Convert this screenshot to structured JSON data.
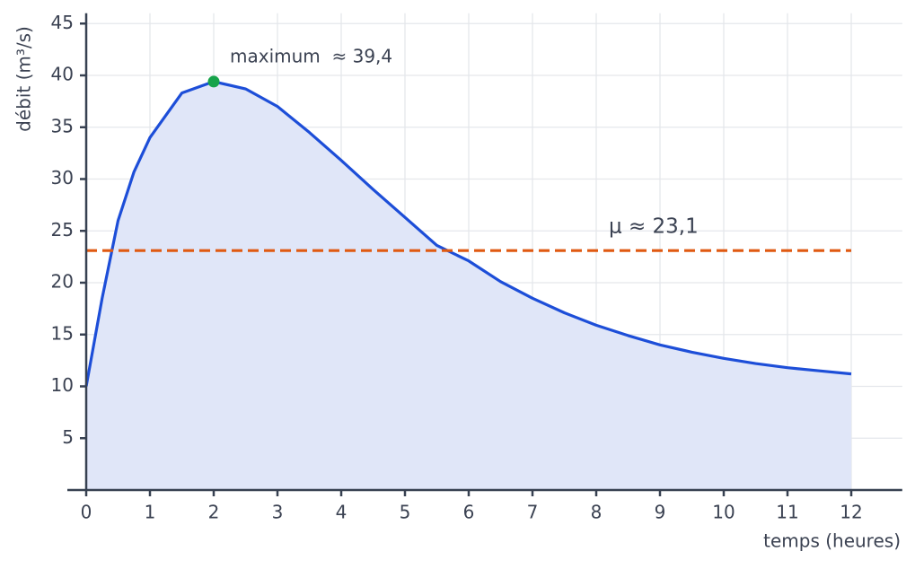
{
  "chart_data": {
    "type": "line",
    "x_label": "temps (heures)",
    "y_label": "débit (m³/s)",
    "x": [
      0,
      0.25,
      0.5,
      0.75,
      1,
      1.5,
      2,
      2.5,
      3,
      3.5,
      4,
      4.5,
      5,
      5.5,
      6,
      6.5,
      7,
      7.5,
      8,
      8.5,
      9,
      9.5,
      10,
      10.5,
      11,
      11.5,
      12
    ],
    "values": [
      10,
      18.5,
      26,
      30.7,
      34,
      38.3,
      39.4,
      38.7,
      37,
      34.5,
      31.8,
      29,
      26.3,
      23.6,
      22.1,
      20.1,
      18.5,
      17.1,
      15.9,
      14.9,
      14,
      13.3,
      12.7,
      12.2,
      11.8,
      11.5,
      11.2
    ],
    "color": "#1d4ed8",
    "fill_color": "#e0e6f8",
    "xlim": [
      0,
      12.8
    ],
    "ylim": [
      0,
      46
    ],
    "xticks": [
      0,
      1,
      2,
      3,
      4,
      5,
      6,
      7,
      8,
      9,
      10,
      11,
      12
    ],
    "yticks": [
      5,
      10,
      15,
      20,
      25,
      30,
      35,
      40,
      45
    ],
    "grid": true,
    "peak": {
      "x": 2,
      "y": 39.4,
      "label": "maximum  ≈ 39,4",
      "color": "#16a34a"
    },
    "mean": {
      "value": 23.1,
      "label": "μ ≈ 23,1",
      "color": "#e05a12"
    }
  }
}
